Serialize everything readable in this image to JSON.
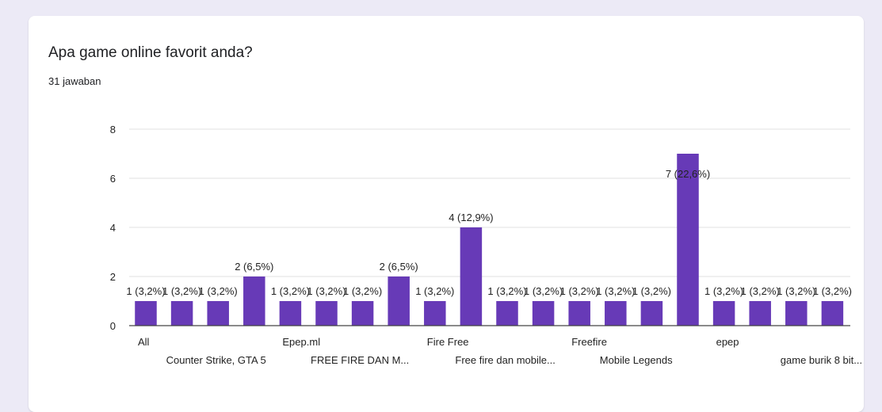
{
  "question": {
    "title": "Apa game online favorit anda?",
    "response_count": "31 jawaban"
  },
  "colors": {
    "bar": "#673ab7",
    "grid": "#e0e0e0",
    "baseline": "#444444",
    "background": "#eceaf6",
    "card": "#ffffff"
  },
  "chart_data": {
    "type": "bar",
    "title": "",
    "xlabel": "",
    "ylabel": "",
    "ylim": [
      0,
      8
    ],
    "yticks": [
      "0",
      "2",
      "4",
      "6",
      "8"
    ],
    "grid": true,
    "legend": "none",
    "values": [
      1,
      1,
      1,
      2,
      1,
      1,
      1,
      2,
      1,
      4,
      1,
      1,
      1,
      1,
      1,
      7,
      1,
      1,
      1,
      1
    ],
    "data_labels": [
      "1 (3,2%)",
      "1 (3,2%)",
      "1 (3,2%)",
      "2 (6,5%)",
      "1 (3,2%)",
      "1 (3,2%)",
      "1 (3,2%)",
      "2 (6,5%)",
      "1 (3,2%)",
      "4 (12,9%)",
      "1 (3,2%)",
      "1 (3,2%)",
      "1 (3,2%)",
      "1 (3,2%)",
      "1 (3,2%)",
      "7 (22,6%)",
      "1 (3,2%)",
      "1 (3,2%)",
      "1 (3,2%)",
      "1 (3,2%)"
    ],
    "category_labels_shown": [
      {
        "bar": 0,
        "row": 1,
        "text": "All"
      },
      {
        "bar": 1,
        "row": 2,
        "text": "Counter Strike, GTA 5"
      },
      {
        "bar": 4,
        "row": 1,
        "text": "Epep.ml"
      },
      {
        "bar": 5,
        "row": 2,
        "text": "FREE FIRE DAN M..."
      },
      {
        "bar": 8,
        "row": 1,
        "text": "Fire Free"
      },
      {
        "bar": 9,
        "row": 2,
        "text": "Free fire dan mobile..."
      },
      {
        "bar": 12,
        "row": 1,
        "text": "Freefire"
      },
      {
        "bar": 13,
        "row": 2,
        "text": "Mobile Legends"
      },
      {
        "bar": 16,
        "row": 1,
        "text": "epep"
      },
      {
        "bar": 18,
        "row": 2,
        "text": "game burik 8 bit..."
      }
    ]
  }
}
